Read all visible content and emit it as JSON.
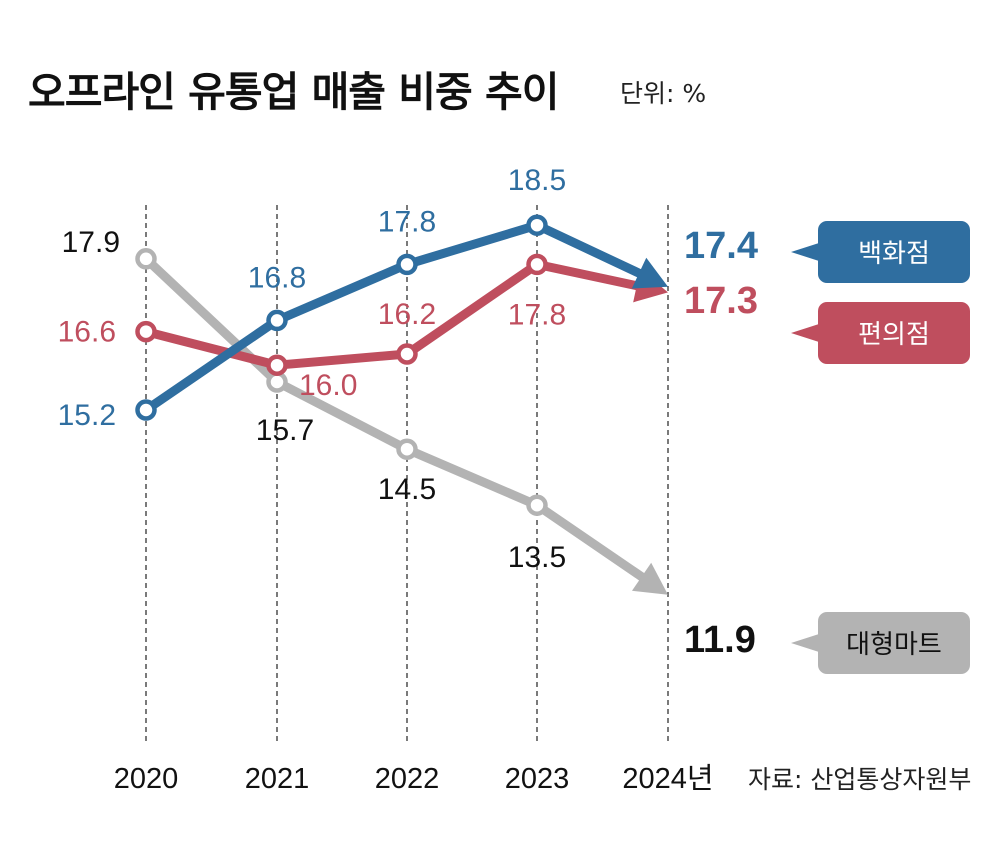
{
  "header": {
    "title": "오프라인 유통업 매출 비중 추이",
    "unit": "단위: %"
  },
  "source": "자료: 산업통상자원부",
  "chart_data": {
    "type": "line",
    "title": "오프라인 유통업 매출 비중 추이",
    "xlabel": "",
    "ylabel": "단위: %",
    "categories": [
      "2020",
      "2021",
      "2022",
      "2023",
      "2024년"
    ],
    "ylim": [
      11.5,
      18.5
    ],
    "grid": "vertical dashed",
    "series": [
      {
        "name": "백화점",
        "color": "#2f6ea0",
        "badge_text": "#ffffff",
        "values": [
          15.2,
          16.8,
          17.8,
          18.5,
          17.4
        ],
        "labels": [
          "15.2",
          "16.8",
          "17.8",
          "18.5",
          "17.4"
        ]
      },
      {
        "name": "편의점",
        "color": "#bf4e5e",
        "badge_text": "#ffffff",
        "values": [
          16.6,
          16.0,
          16.2,
          17.8,
          17.3
        ],
        "labels": [
          "16.6",
          "16.0",
          "16.2",
          "17.8",
          "17.3"
        ]
      },
      {
        "name": "대형마트",
        "color": "#b3b3b3",
        "badge_text": "#111111",
        "values": [
          17.9,
          15.7,
          14.5,
          13.5,
          11.9
        ],
        "labels": [
          "17.9",
          "15.7",
          "14.5",
          "13.5",
          "11.9"
        ]
      }
    ]
  }
}
